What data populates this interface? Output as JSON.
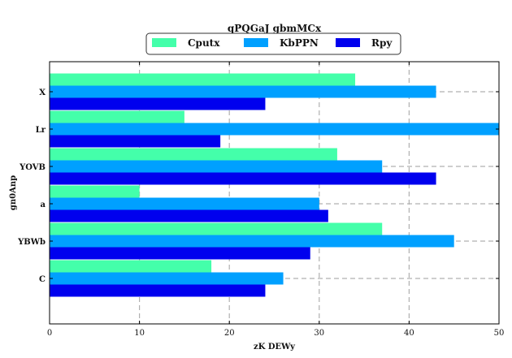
{
  "chart_data": {
    "type": "bar",
    "orientation": "horizontal",
    "title": "qPQGaJ gbmMCx",
    "xlabel": "zK DEWy",
    "ylabel": "gn0Anp",
    "xlim": [
      0,
      50
    ],
    "xticks": [
      0,
      10,
      20,
      30,
      40,
      50
    ],
    "grid": true,
    "legend_position": "top-center",
    "categories": [
      "X",
      "Lr",
      "YOVB",
      "a",
      "YBWb",
      "C"
    ],
    "series": [
      {
        "name": "Cputx",
        "color": "#44ffaa",
        "values": [
          34,
          15,
          32,
          10,
          37,
          18
        ]
      },
      {
        "name": "KbPPN",
        "color": "#00a0ff",
        "values": [
          43,
          50,
          37,
          30,
          45,
          26
        ]
      },
      {
        "name": "Rpy",
        "color": "#0000ee",
        "values": [
          24,
          19,
          43,
          31,
          29,
          24
        ]
      }
    ]
  }
}
